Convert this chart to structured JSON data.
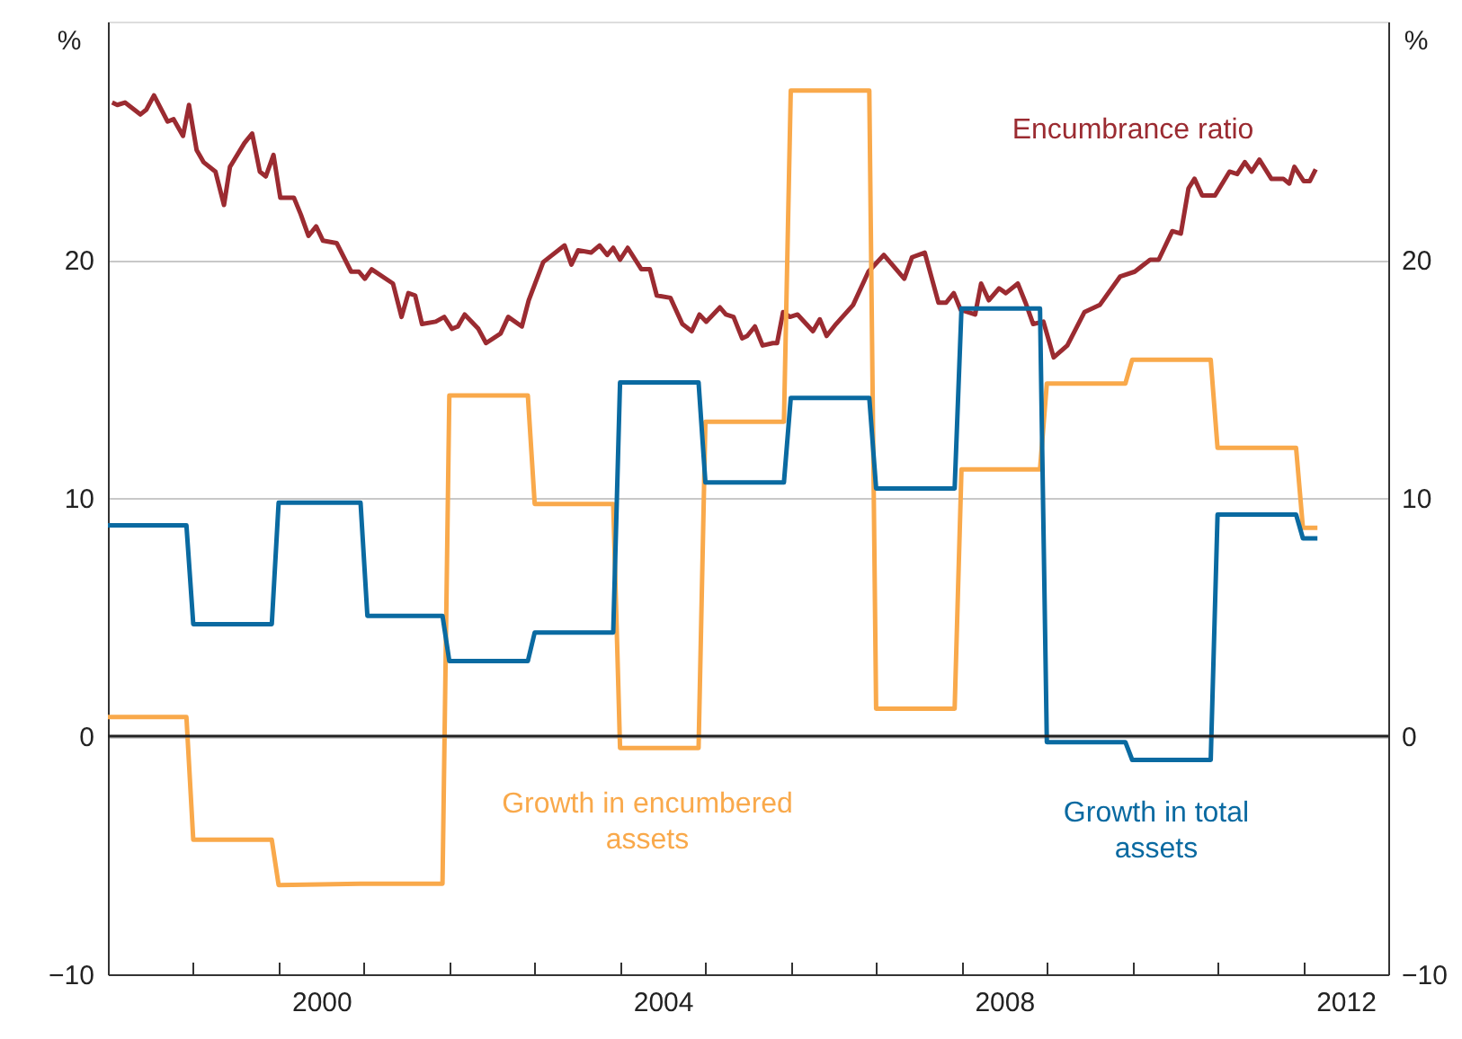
{
  "chart_data": {
    "type": "line",
    "ylabel": "%",
    "y2label": "%",
    "xlim": [
      1998,
      2013
    ],
    "ylim": [
      -10,
      30
    ],
    "yticks": [
      -10,
      0,
      10,
      20
    ],
    "y2lim": [
      -10,
      30
    ],
    "y2ticks": [
      -10,
      0,
      10,
      20
    ],
    "grid": "y",
    "xticks": [
      {
        "value": 1999,
        "label": null
      },
      {
        "value": 2000,
        "label": null
      },
      {
        "value": 2000.5,
        "label": "2000"
      },
      {
        "value": 2001,
        "label": null
      },
      {
        "value": 2002,
        "label": null
      },
      {
        "value": 2003,
        "label": null
      },
      {
        "value": 2004,
        "label": null
      },
      {
        "value": 2004.5,
        "label": "2004"
      },
      {
        "value": 2005,
        "label": null
      },
      {
        "value": 2006,
        "label": null
      },
      {
        "value": 2007,
        "label": null
      },
      {
        "value": 2008,
        "label": null
      },
      {
        "value": 2008.5,
        "label": "2008"
      },
      {
        "value": 2009,
        "label": null
      },
      {
        "value": 2010,
        "label": null
      },
      {
        "value": 2011,
        "label": null
      },
      {
        "value": 2012,
        "label": null
      },
      {
        "value": 2012.5,
        "label": "2012"
      }
    ],
    "ref_lines": [
      {
        "axis": "y",
        "value": 0,
        "color": "#222222"
      }
    ],
    "series": [
      {
        "name": "Encumbrance ratio",
        "color": "#9b2b31",
        "x": [
          1998.05,
          1998.11,
          1998.2,
          1998.38,
          1998.45,
          1998.54,
          1998.7,
          1998.77,
          1998.88,
          1998.95,
          1999.04,
          1999.12,
          1999.26,
          1999.36,
          1999.43,
          1999.6,
          1999.69,
          1999.78,
          1999.85,
          1999.94,
          2000.02,
          2000.18,
          2000.26,
          2000.35,
          2000.44,
          2000.52,
          2000.68,
          2000.85,
          2000.94,
          2001.01,
          2001.09,
          2001.34,
          2001.44,
          2001.52,
          2001.6,
          2001.68,
          2001.84,
          2001.94,
          2002.03,
          2002.1,
          2002.18,
          2002.34,
          2002.43,
          2002.6,
          2002.69,
          2002.85,
          2002.93,
          2003.1,
          2003.17,
          2003.35,
          2003.43,
          2003.51,
          2003.66,
          2003.76,
          2003.85,
          2003.92,
          2004.0,
          2004.09,
          2004.25,
          2004.35,
          2004.43,
          2004.59,
          2004.73,
          2004.84,
          2004.93,
          2005.01,
          2005.17,
          2005.24,
          2005.33,
          2005.43,
          2005.49,
          2005.58,
          2005.67,
          2005.79,
          2005.84,
          2005.91,
          2005.99,
          2006.08,
          2006.26,
          2006.34,
          2006.42,
          2006.53,
          2006.73,
          2006.91,
          2007.09,
          2007.33,
          2007.42,
          2007.57,
          2007.73,
          2007.82,
          2007.91,
          2007.99,
          2008.16,
          2008.23,
          2008.32,
          2008.44,
          2008.52,
          2008.66,
          2008.75,
          2008.84,
          2008.96,
          2009.08,
          2009.24,
          2009.44,
          2009.62,
          2009.86,
          2010.03,
          2010.21,
          2010.31,
          2010.47,
          2010.57,
          2010.66,
          2010.73,
          2010.82,
          2010.97,
          2011.14,
          2011.23,
          2011.32,
          2011.4,
          2011.49,
          2011.63,
          2011.77,
          2011.84,
          2011.9,
          2012.01,
          2012.08,
          2012.15
        ],
        "values": [
          26.6,
          26.5,
          26.6,
          26.1,
          26.3,
          26.9,
          25.8,
          25.9,
          25.2,
          26.5,
          24.6,
          24.1,
          23.7,
          22.3,
          23.9,
          24.9,
          25.3,
          23.7,
          23.5,
          24.4,
          22.6,
          22.6,
          21.9,
          21.0,
          21.4,
          20.8,
          20.7,
          19.5,
          19.5,
          19.2,
          19.6,
          19.0,
          17.6,
          18.6,
          18.5,
          17.3,
          17.4,
          17.6,
          17.1,
          17.2,
          17.7,
          17.1,
          16.5,
          16.9,
          17.6,
          17.2,
          18.3,
          19.9,
          20.1,
          20.6,
          19.8,
          20.4,
          20.3,
          20.6,
          20.2,
          20.5,
          20.0,
          20.5,
          19.6,
          19.6,
          18.5,
          18.4,
          17.3,
          17.0,
          17.7,
          17.4,
          18.0,
          17.7,
          17.6,
          16.7,
          16.8,
          17.2,
          16.4,
          16.5,
          16.5,
          17.8,
          17.6,
          17.7,
          17.0,
          17.5,
          16.8,
          17.3,
          18.1,
          19.5,
          20.2,
          19.2,
          20.1,
          20.3,
          18.2,
          18.2,
          18.6,
          17.9,
          17.7,
          19.0,
          18.3,
          18.8,
          18.6,
          19.0,
          18.2,
          17.3,
          17.4,
          15.9,
          16.4,
          17.8,
          18.1,
          19.3,
          19.5,
          20.0,
          20.0,
          21.2,
          21.1,
          23.0,
          23.4,
          22.7,
          22.7,
          23.7,
          23.6,
          24.1,
          23.7,
          24.2,
          23.4,
          23.4,
          23.2,
          23.9,
          23.3,
          23.3,
          23.8
        ]
      },
      {
        "name": "Growth in encumbered assets",
        "color": "#f9a94b",
        "x": [
          1998.0,
          1998.92,
          1999.0,
          1999.92,
          2000.0,
          2000.96,
          2001.92,
          2002.0,
          2002.92,
          2003.0,
          2003.92,
          2004.0,
          2004.92,
          2005.0,
          2005.92,
          2006.0,
          2006.92,
          2007.0,
          2007.92,
          2008.0,
          2008.92,
          2009.0,
          2009.92,
          2010.0,
          2010.92,
          2011.0,
          2011.92,
          2012.0,
          2012.17
        ],
        "values": [
          0.8,
          0.8,
          -4.35,
          -4.35,
          -6.25,
          -6.2,
          -6.2,
          14.3,
          14.3,
          9.75,
          9.75,
          -0.5,
          -0.5,
          13.2,
          13.2,
          27.1,
          27.1,
          1.15,
          1.15,
          11.2,
          11.2,
          14.8,
          14.8,
          15.8,
          15.8,
          12.1,
          12.1,
          8.75,
          8.75
        ]
      },
      {
        "name": "Growth in total assets",
        "color": "#0a6aa1",
        "x": [
          1998.0,
          1998.92,
          1999.0,
          1999.92,
          2000.0,
          2000.96,
          2001.04,
          2001.92,
          2002.0,
          2002.92,
          2003.0,
          2003.92,
          2004.0,
          2004.92,
          2005.0,
          2005.92,
          2006.0,
          2006.92,
          2007.0,
          2007.92,
          2008.0,
          2008.92,
          2009.0,
          2009.92,
          2010.0,
          2010.92,
          2011.0,
          2011.92,
          2012.0,
          2012.17
        ],
        "values": [
          8.85,
          8.85,
          4.7,
          4.7,
          9.8,
          9.8,
          5.05,
          5.05,
          3.15,
          3.15,
          4.35,
          4.35,
          14.85,
          14.85,
          10.65,
          10.65,
          14.2,
          14.2,
          10.4,
          10.4,
          17.95,
          17.95,
          -0.25,
          -0.25,
          -1.0,
          -1.0,
          9.3,
          9.3,
          8.3,
          8.3
        ]
      }
    ]
  }
}
